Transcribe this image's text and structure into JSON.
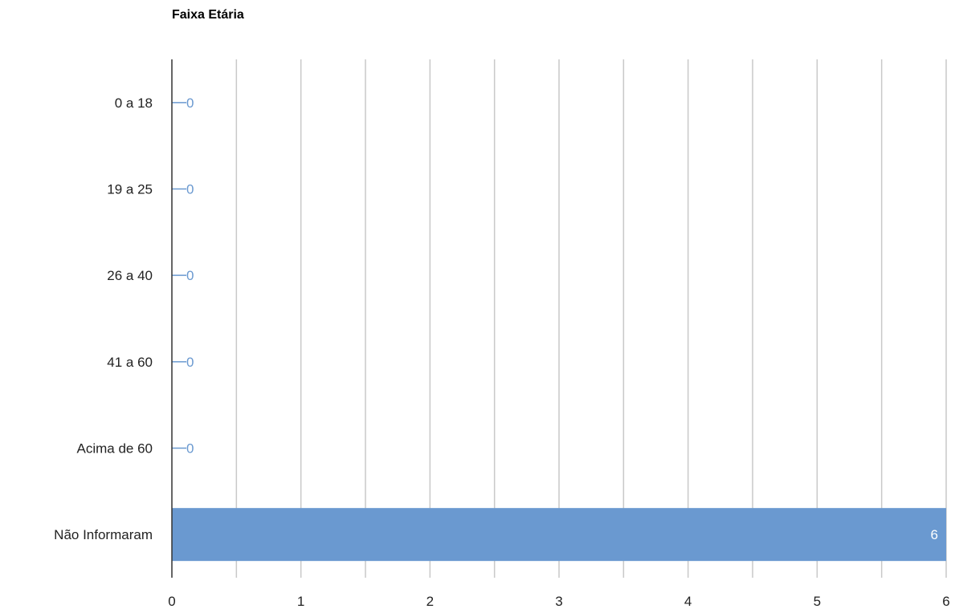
{
  "chart_data": {
    "type": "bar",
    "orientation": "horizontal",
    "title": "Faixa Etária",
    "xlabel": "",
    "ylabel": "",
    "categories": [
      "0 a 18",
      "19 a 25",
      "26 a 40",
      "41 a 60",
      "Acima de 60",
      "Não Informaram"
    ],
    "values": [
      0,
      0,
      0,
      0,
      0,
      6
    ],
    "value_labels": [
      "0",
      "0",
      "0",
      "0",
      "0",
      "6"
    ],
    "xlim": [
      0,
      6
    ],
    "xticks": [
      "0",
      "1",
      "2",
      "3",
      "4",
      "5",
      "6"
    ],
    "minor_gridlines": true,
    "grid": true,
    "legend": "none",
    "bar_color": "#6a99d0",
    "label_color": "#6a99d0",
    "inside_label_color": "#ffffff",
    "grid_color": "#c9c9c9",
    "axis_color": "#333333"
  }
}
